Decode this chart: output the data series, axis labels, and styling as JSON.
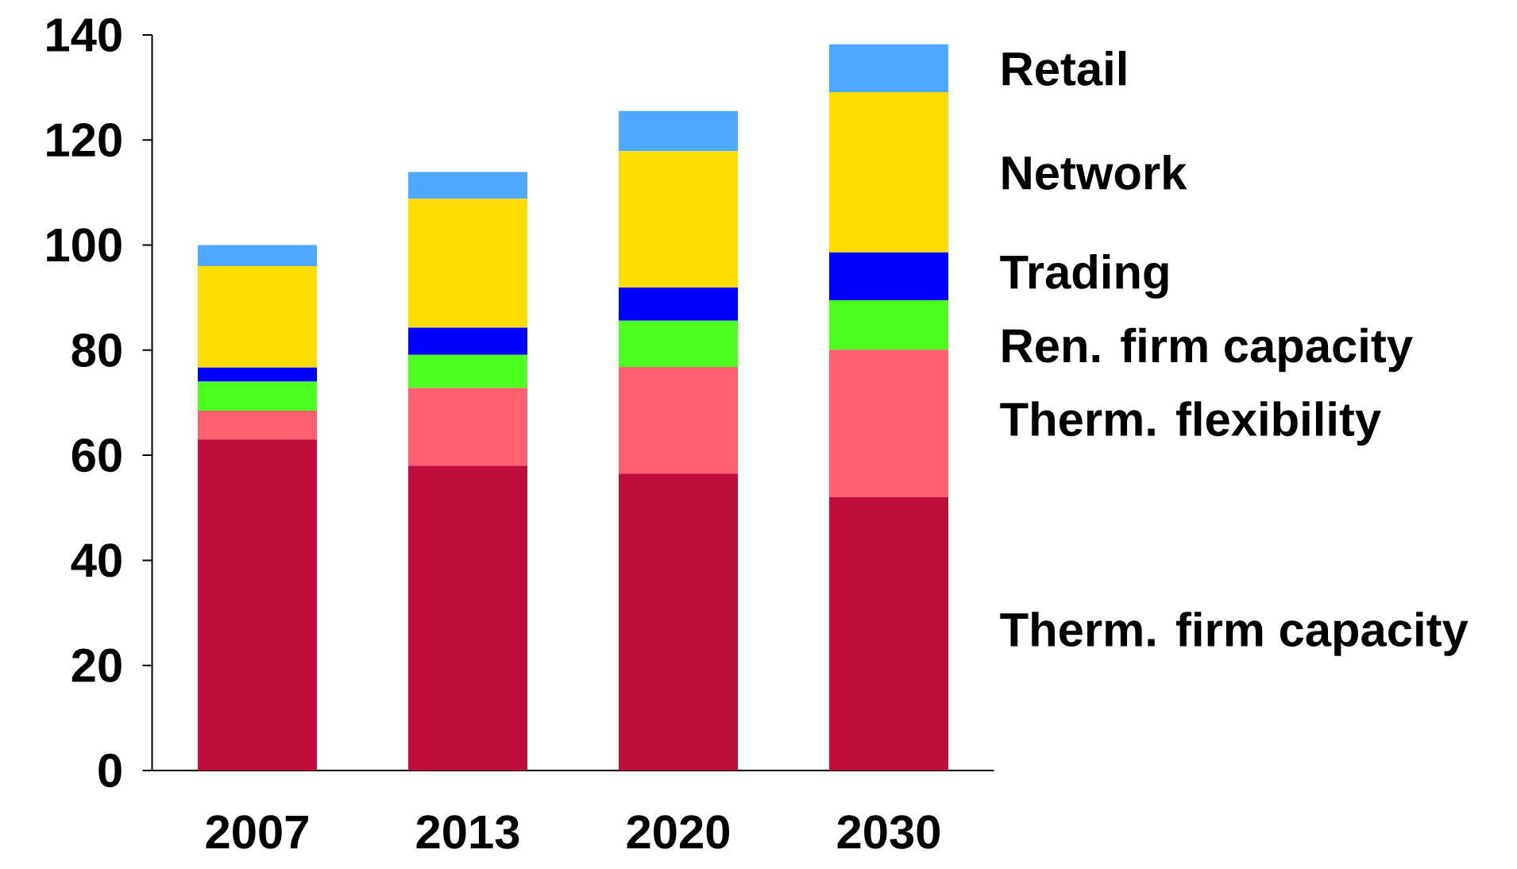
{
  "chart_data": {
    "type": "bar",
    "stacked": true,
    "categories": [
      "2007",
      "2013",
      "2020",
      "2030"
    ],
    "series": [
      {
        "name": "Therm. firm capacity",
        "color": "#c00d3c",
        "values": [
          63,
          58,
          56.5,
          52
        ]
      },
      {
        "name": "Therm. flexibility",
        "color": "#ff5f6e",
        "values": [
          5.5,
          14.8,
          20.3,
          28.1
        ]
      },
      {
        "name": "Ren. firm capacity",
        "color": "#4aff1e",
        "values": [
          5.5,
          6.3,
          8.8,
          9.4
        ]
      },
      {
        "name": "Trading",
        "color": "#0000ff",
        "values": [
          2.7,
          5.2,
          6.3,
          9.1
        ]
      },
      {
        "name": "Network",
        "color": "#ffdc00",
        "values": [
          19.3,
          24.5,
          26,
          30.5
        ]
      },
      {
        "name": "Retail",
        "color": "#4fa8ff",
        "values": [
          4,
          5.1,
          7.6,
          9.1
        ]
      }
    ],
    "ylim": [
      0,
      140
    ],
    "yticks": [
      0,
      20,
      40,
      60,
      80,
      100,
      120,
      140
    ],
    "legend": "right"
  }
}
